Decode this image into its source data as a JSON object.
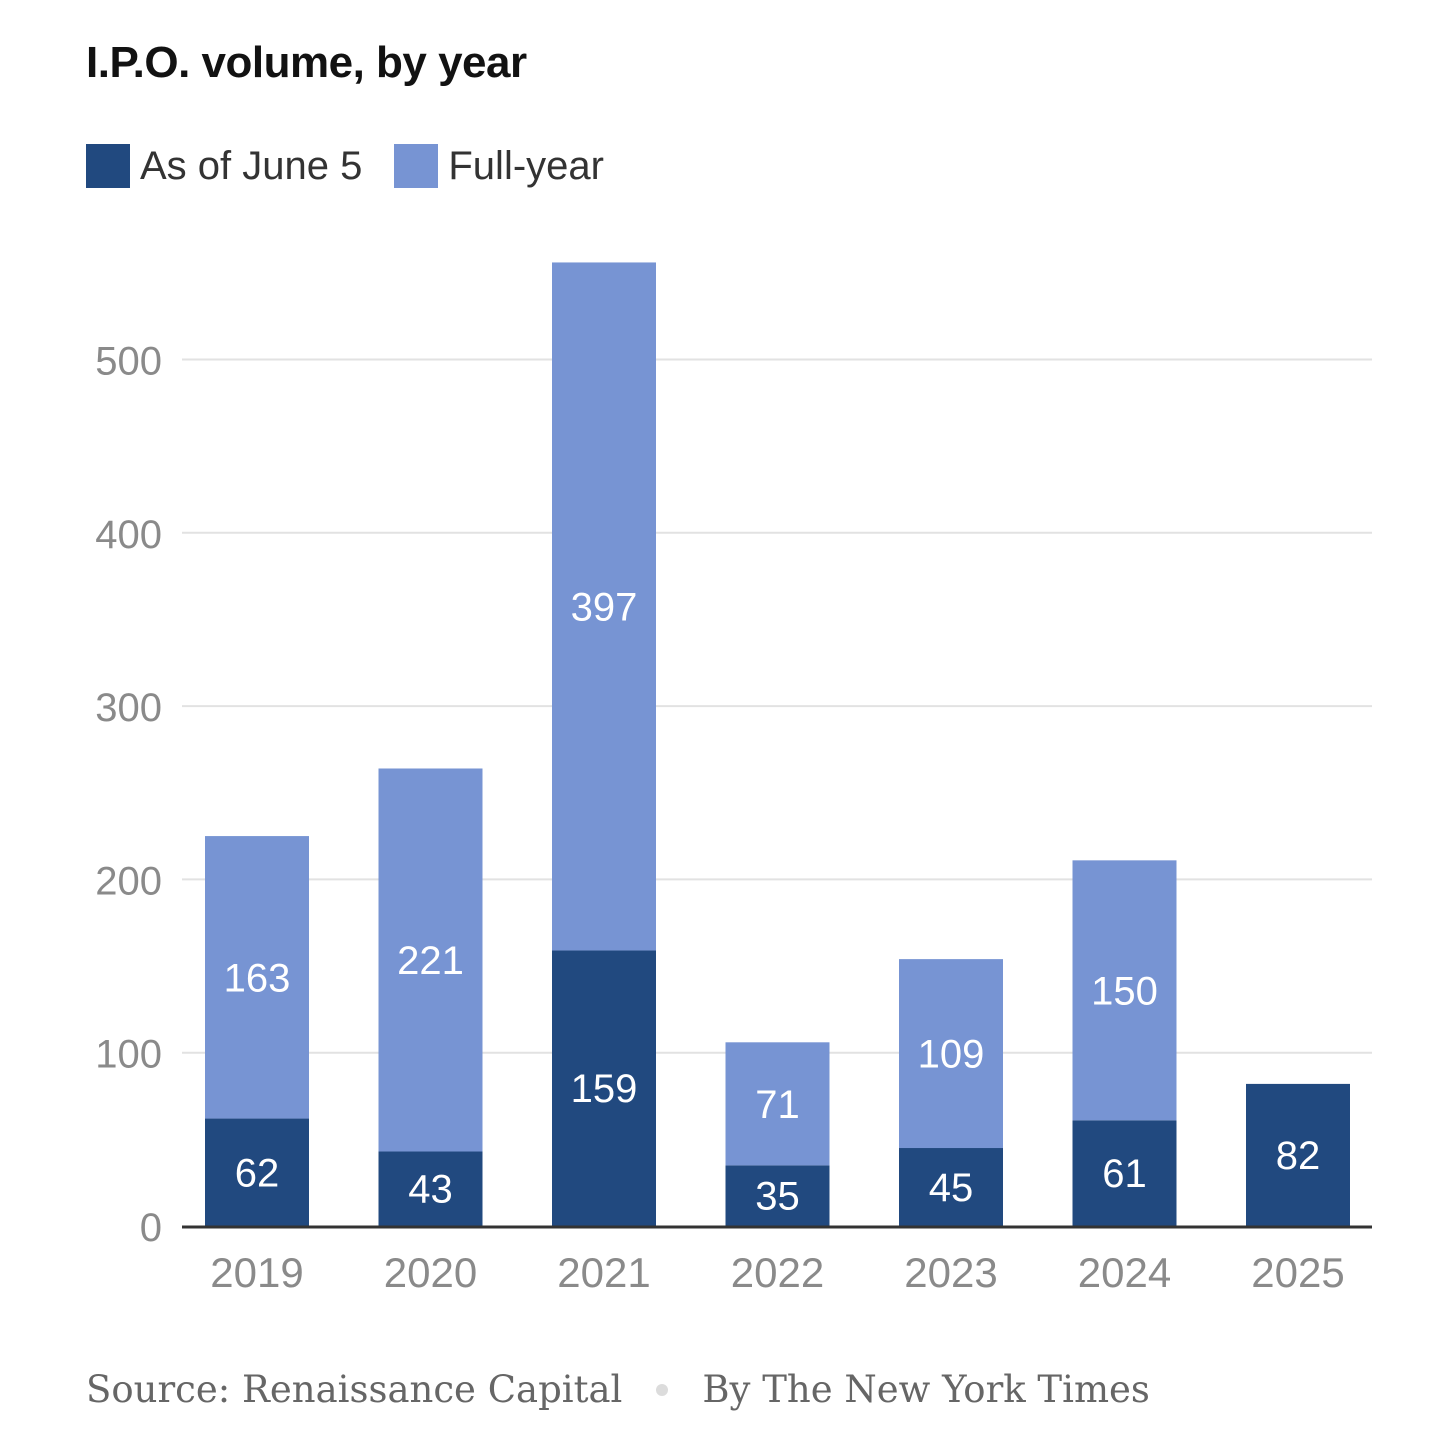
{
  "chart_data": {
    "type": "bar",
    "stacked": true,
    "title": "I.P.O. volume, by year",
    "categories": [
      "2019",
      "2020",
      "2021",
      "2022",
      "2023",
      "2024",
      "2025"
    ],
    "series": [
      {
        "name": "As of June 5",
        "color": "#21497f",
        "values": [
          62,
          43,
          159,
          35,
          45,
          61,
          82
        ]
      },
      {
        "name": "Full-year",
        "color": "#7794d3",
        "values": [
          163,
          221,
          397,
          71,
          109,
          150,
          null
        ]
      }
    ],
    "yticks": [
      0,
      100,
      200,
      300,
      400,
      500
    ],
    "ylim": [
      0,
      560
    ],
    "grid": true,
    "legend_position": "top-left",
    "xlabel": "",
    "ylabel": ""
  },
  "footer": {
    "source": "Source: Renaissance Capital",
    "credit": "By The New York Times"
  },
  "colors": {
    "axis_text": "#8a8a8a",
    "gridline": "#e2e2e2",
    "baseline": "#333333",
    "bar_label": "#ffffff",
    "footer_dot": "#dcdcdc"
  }
}
